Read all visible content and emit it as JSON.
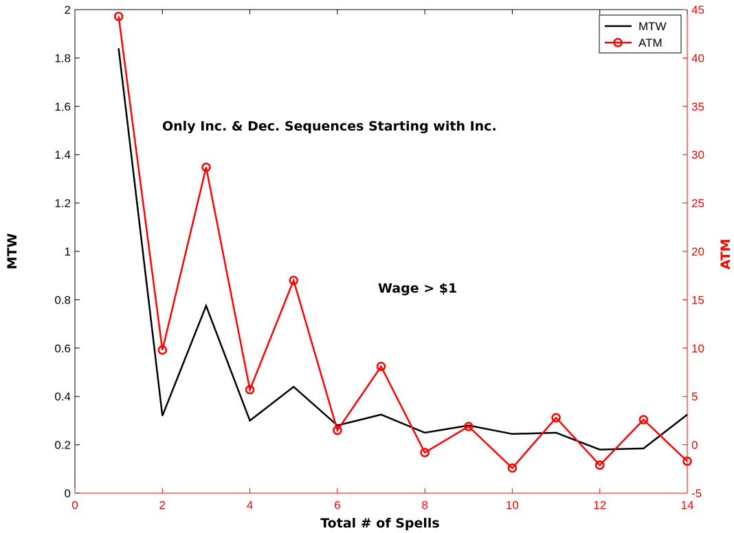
{
  "chart_data": {
    "type": "line",
    "xlabel": "Total # of Spells",
    "ylabel_left": "MTW",
    "ylabel_right": "ATM",
    "xlim": [
      0,
      14
    ],
    "ylim_left": [
      0,
      2
    ],
    "ylim_right": [
      -5,
      45
    ],
    "xticks": [
      "0",
      "2",
      "4",
      "6",
      "8",
      "10",
      "12",
      "14"
    ],
    "yticks_left": [
      "0",
      "0.2",
      "0.4",
      "0.6",
      "0.8",
      "1",
      "1.2",
      "1.4",
      "1.6",
      "1.8",
      "2"
    ],
    "yticks_right": [
      "-5",
      "0",
      "5",
      "10",
      "15",
      "20",
      "25",
      "30",
      "35",
      "40",
      "45"
    ],
    "annotations": [
      "Only Inc. & Dec. Sequences Starting with Inc.",
      "Wage > $1"
    ],
    "legend_position": "top-right",
    "colors": {
      "left_axis": "#000000",
      "right_axis": "#ff0000",
      "MTW": "#000000",
      "ATM": "#ff0000"
    },
    "series": [
      {
        "name": "MTW",
        "axis": "left",
        "x": [
          1,
          2,
          3,
          4,
          5,
          6,
          7,
          8,
          9,
          10,
          11,
          12,
          13,
          14
        ],
        "values": [
          1.84,
          0.32,
          0.775,
          0.3,
          0.44,
          0.28,
          0.325,
          0.25,
          0.28,
          0.245,
          0.25,
          0.18,
          0.185,
          0.325
        ]
      },
      {
        "name": "ATM",
        "axis": "right",
        "x": [
          1,
          2,
          3,
          4,
          5,
          6,
          7,
          8,
          9,
          10,
          11,
          12,
          13,
          14
        ],
        "values": [
          44.3,
          9.8,
          28.7,
          5.7,
          17.0,
          1.5,
          8.1,
          -0.8,
          1.9,
          -2.4,
          2.8,
          -2.1,
          2.6,
          -1.7
        ]
      }
    ]
  }
}
